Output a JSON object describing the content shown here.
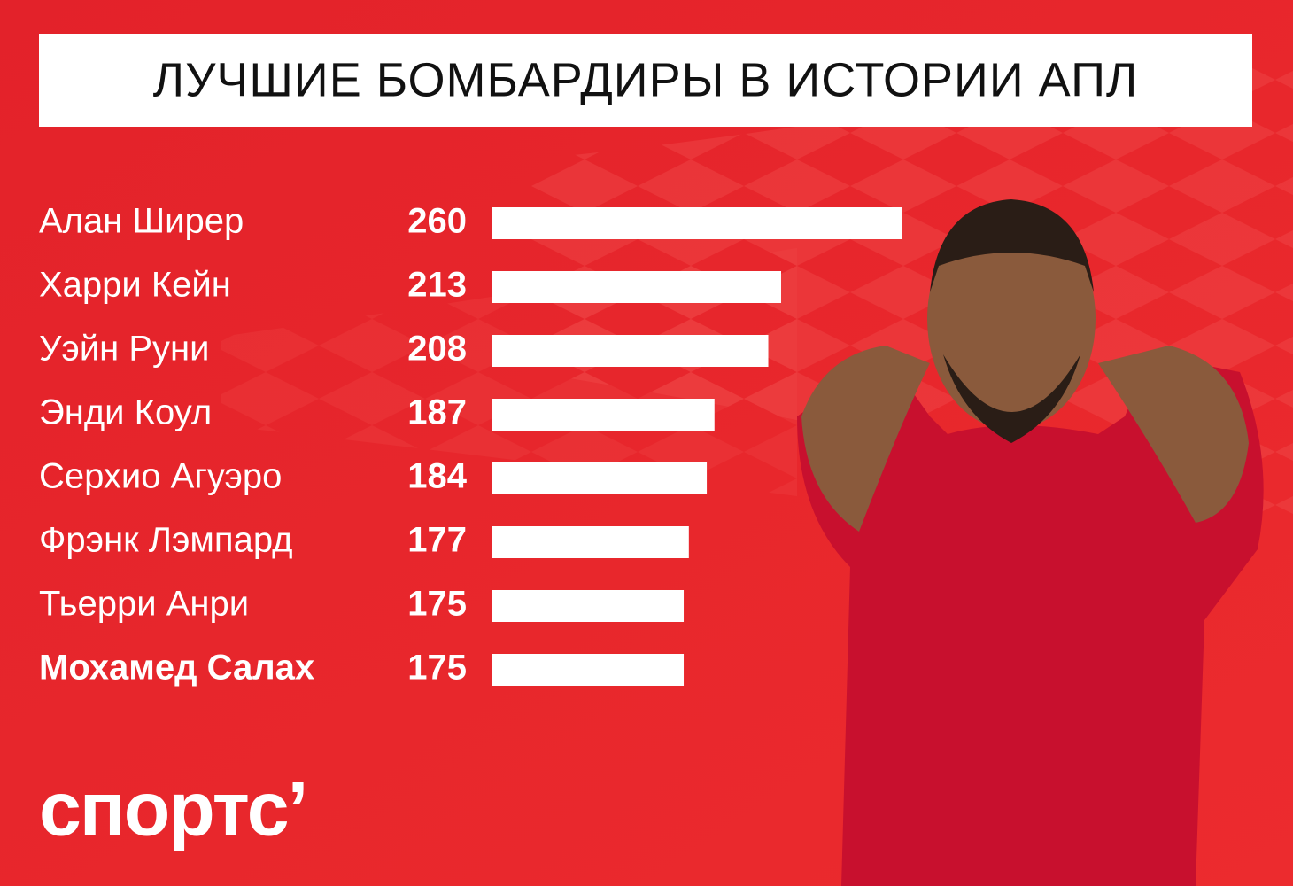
{
  "chart_data": {
    "type": "bar",
    "orientation": "horizontal",
    "title": "ЛУЧШИЕ БОМБАРДИРЫ В ИСТОРИИ АПЛ",
    "categories": [
      "Алан Ширер",
      "Харри Кейн",
      "Уэйн Руни",
      "Энди Коул",
      "Серхио Агуэро",
      "Фрэнк Лэмпард",
      "Тьерри Анри",
      "Мохамед Салах"
    ],
    "values": [
      260,
      213,
      208,
      187,
      184,
      177,
      175,
      175
    ],
    "color": "#ffffff",
    "xlim": [
      100,
      260
    ],
    "highlight": 7
  },
  "logo": "спортс’"
}
